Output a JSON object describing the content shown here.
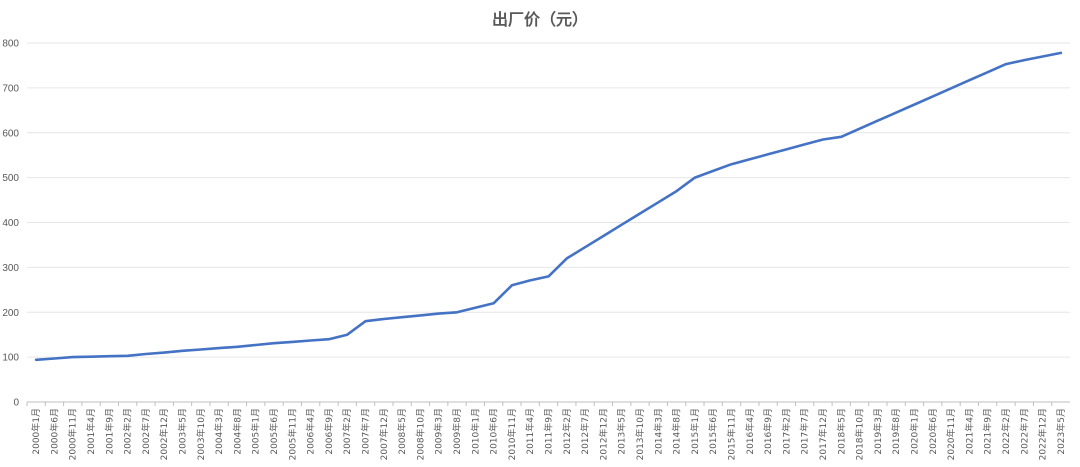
{
  "chart_data": {
    "type": "line",
    "title": "出厂价（元）",
    "xlabel": "",
    "ylabel": "",
    "ylim": [
      0,
      800
    ],
    "yticks": [
      0,
      100,
      200,
      300,
      400,
      500,
      600,
      700,
      800
    ],
    "grid": true,
    "legend": "none",
    "line_color": "#4472C4",
    "x": [
      "2000年1月",
      "2000年6月",
      "2000年11月",
      "2001年4月",
      "2001年9月",
      "2002年2月",
      "2002年7月",
      "2002年12月",
      "2003年5月",
      "2003年10月",
      "2004年3月",
      "2004年8月",
      "2005年1月",
      "2005年6月",
      "2005年11月",
      "2006年4月",
      "2006年9月",
      "2007年2月",
      "2007年7月",
      "2007年12月",
      "2008年5月",
      "2008年10月",
      "2009年3月",
      "2009年8月",
      "2010年1月",
      "2010年6月",
      "2010年11月",
      "2011年4月",
      "2011年9月",
      "2012年2月",
      "2012年7月",
      "2012年12月",
      "2013年5月",
      "2013年10月",
      "2014年3月",
      "2014年8月",
      "2015年1月",
      "2015年6月",
      "2015年11月",
      "2016年4月",
      "2016年9月",
      "2017年2月",
      "2017年7月",
      "2017年12月",
      "2018年5月",
      "2018年10月",
      "2019年3月",
      "2019年8月",
      "2020年1月",
      "2020年6月",
      "2020年11月",
      "2021年4月",
      "2021年9月",
      "2022年2月",
      "2022年7月",
      "2022年12月",
      "2023年5月"
    ],
    "series": [
      {
        "values": [
          94,
          97,
          100,
          101,
          102,
          103,
          107,
          110,
          114,
          117,
          120,
          123,
          127,
          131,
          134,
          137,
          140,
          150,
          180,
          185,
          189,
          193,
          197,
          200,
          210,
          220,
          260,
          271,
          280,
          320,
          345,
          370,
          395,
          420,
          445,
          470,
          500,
          515,
          530,
          541,
          552,
          563,
          574,
          585,
          591,
          609,
          627,
          645,
          663,
          681,
          699,
          717,
          735,
          753,
          762,
          770,
          778
        ]
      }
    ]
  }
}
